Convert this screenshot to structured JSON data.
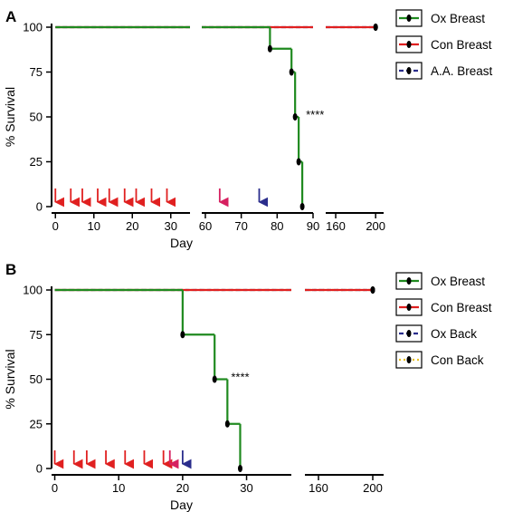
{
  "chart_data": [
    {
      "type": "line",
      "panel": "A",
      "xlabel": "Day",
      "ylabel": "% Survival",
      "ylim": [
        0,
        100
      ],
      "yticks": [
        0,
        25,
        50,
        75,
        100
      ],
      "x_segments": [
        {
          "range": [
            -1,
            35
          ],
          "ticks": [
            0,
            10,
            20,
            30
          ]
        },
        {
          "range": [
            59,
            90
          ],
          "ticks": [
            60,
            70,
            80,
            90
          ]
        },
        {
          "range": [
            150,
            208
          ],
          "ticks": [
            160,
            200
          ]
        }
      ],
      "series": [
        {
          "name": "Ox Breast",
          "color": "#1f8a1f",
          "style": "solid",
          "points": [
            [
              0,
              100
            ],
            [
              78,
              88
            ],
            [
              84,
              75
            ],
            [
              85,
              50
            ],
            [
              86,
              25
            ],
            [
              87,
              0
            ]
          ]
        },
        {
          "name": "Con Breast",
          "color": "#e02020",
          "style": "solid",
          "points": [
            [
              0,
              100
            ],
            [
              200,
              100
            ]
          ]
        },
        {
          "name": "A.A. Breast",
          "color": "#2a2d8c",
          "style": "dashed",
          "points": [
            [
              0,
              100
            ],
            [
              200,
              100
            ]
          ]
        }
      ],
      "arrows": [
        {
          "x": 0,
          "color": "#e02020"
        },
        {
          "x": 4,
          "color": "#e02020"
        },
        {
          "x": 7,
          "color": "#e02020"
        },
        {
          "x": 11,
          "color": "#e02020"
        },
        {
          "x": 14,
          "color": "#e02020"
        },
        {
          "x": 18,
          "color": "#e02020"
        },
        {
          "x": 21,
          "color": "#e02020"
        },
        {
          "x": 25,
          "color": "#e02020"
        },
        {
          "x": 29,
          "color": "#e02020"
        },
        {
          "x": 64,
          "color": "#d62060"
        },
        {
          "x": 75,
          "color": "#2a2d8c"
        }
      ],
      "annotation": {
        "text": "****",
        "x": 87,
        "y": 50
      },
      "legend": "top-right"
    },
    {
      "type": "line",
      "panel": "B",
      "xlabel": "Day",
      "ylabel": "% Survival",
      "ylim": [
        0,
        100
      ],
      "yticks": [
        0,
        25,
        50,
        75,
        100
      ],
      "x_segments": [
        {
          "range": [
            -0.5,
            37
          ],
          "ticks": [
            0,
            10,
            20,
            30
          ]
        },
        {
          "range": [
            150,
            208
          ],
          "ticks": [
            160,
            200
          ]
        }
      ],
      "series": [
        {
          "name": "Ox Breast",
          "color": "#1f8a1f",
          "style": "solid",
          "points": [
            [
              0,
              100
            ],
            [
              20,
              75
            ],
            [
              25,
              50
            ],
            [
              27,
              25
            ],
            [
              29,
              0
            ]
          ]
        },
        {
          "name": "Con Breast",
          "color": "#e02020",
          "style": "solid",
          "points": [
            [
              0,
              100
            ],
            [
              200,
              100
            ]
          ]
        },
        {
          "name": "Ox Back",
          "color": "#2a2d8c",
          "style": "dashed",
          "points": [
            [
              0,
              100
            ],
            [
              200,
              100
            ]
          ]
        },
        {
          "name": "Con Back",
          "color": "#e8c020",
          "style": "dotted",
          "points": [
            [
              0,
              100
            ],
            [
              200,
              100
            ]
          ]
        }
      ],
      "arrows": [
        {
          "x": 0,
          "color": "#e02020"
        },
        {
          "x": 3,
          "color": "#e02020"
        },
        {
          "x": 5,
          "color": "#e02020"
        },
        {
          "x": 8,
          "color": "#e02020"
        },
        {
          "x": 11,
          "color": "#e02020"
        },
        {
          "x": 14,
          "color": "#e02020"
        },
        {
          "x": 17,
          "color": "#e02020"
        },
        {
          "x": 18,
          "color": "#d62060"
        },
        {
          "x": 20,
          "color": "#2a2d8c"
        }
      ],
      "annotation": {
        "text": "****",
        "x": 27,
        "y": 50
      },
      "legend": "right"
    }
  ]
}
